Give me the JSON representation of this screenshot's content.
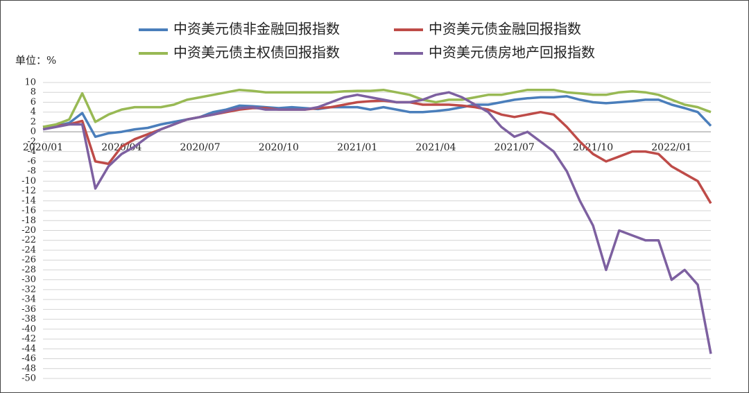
{
  "chart_data": {
    "type": "line",
    "unit_label": "单位：%",
    "x": [
      "2020/01",
      null,
      null,
      null,
      null,
      null,
      "2020/04",
      null,
      null,
      null,
      null,
      null,
      "2020/07",
      null,
      null,
      null,
      null,
      null,
      "2020/10",
      null,
      null,
      null,
      null,
      null,
      "2021/01",
      null,
      null,
      null,
      null,
      null,
      "2021/04",
      null,
      null,
      null,
      null,
      null,
      "2021/07",
      null,
      null,
      null,
      null,
      null,
      "2021/10",
      null,
      null,
      null,
      null,
      null,
      "2022/01",
      null,
      null,
      null
    ],
    "series": [
      {
        "name": "中资美元债非金融回报指数",
        "color": "#4a7ebb",
        "values": [
          1,
          1.2,
          1.8,
          3.8,
          -1,
          -0.3,
          0,
          0.5,
          0.8,
          1.5,
          2,
          2.5,
          3,
          4,
          4.5,
          5.3,
          5.2,
          5,
          4.8,
          5,
          4.8,
          4.6,
          5,
          5,
          5,
          4.5,
          5,
          4.5,
          4,
          4,
          4.2,
          4.5,
          5,
          5.5,
          5.5,
          6,
          6.5,
          6.8,
          7,
          7,
          7.2,
          6.5,
          6,
          5.8,
          6,
          6.2,
          6.5,
          6.5,
          5.5,
          4.8,
          4,
          1.2
        ]
      },
      {
        "name": "中资美元债金融回报指数",
        "color": "#be4b48",
        "values": [
          1,
          1.2,
          1.5,
          2.2,
          -6,
          -6.5,
          -3,
          -1.5,
          -0.5,
          0.5,
          1.5,
          2.5,
          3,
          3.5,
          4,
          4.5,
          4.8,
          4.8,
          4.5,
          4.5,
          4.5,
          4.8,
          5,
          5.5,
          6,
          6.2,
          6.3,
          6,
          6,
          5.5,
          5.5,
          5.5,
          5.3,
          5,
          4.5,
          3.5,
          3,
          3.5,
          4,
          3.5,
          1,
          -2,
          -4.5,
          -6,
          -5,
          -4,
          -4,
          -4.5,
          -7,
          -8.5,
          -10,
          -14.5
        ]
      },
      {
        "name": "中资美元债主权债回报指数",
        "color": "#98b954",
        "values": [
          1,
          1.5,
          2.5,
          7.8,
          2,
          3.5,
          4.5,
          5,
          5,
          5,
          5.5,
          6.5,
          7,
          7.5,
          8,
          8.5,
          8.3,
          8,
          8,
          8,
          8,
          8,
          8,
          8.2,
          8.3,
          8.3,
          8.5,
          8,
          7.5,
          6.5,
          6,
          6.5,
          6.5,
          7,
          7.5,
          7.5,
          8,
          8.5,
          8.5,
          8.5,
          8,
          7.8,
          7.5,
          7.5,
          8,
          8.2,
          8,
          7.5,
          6.5,
          5.5,
          5,
          4
        ]
      },
      {
        "name": "中资美元债房地产回报指数",
        "color": "#7d60a0",
        "values": [
          0.5,
          1,
          1.5,
          1.5,
          -11.5,
          -7,
          -4.5,
          -3,
          -1,
          0.5,
          1.5,
          2.5,
          3,
          3.5,
          4.2,
          4.8,
          5,
          4.5,
          4.5,
          4.5,
          4.5,
          5,
          6,
          7,
          7.5,
          7,
          6.5,
          6,
          6,
          6.5,
          7.5,
          8,
          7,
          5.5,
          4,
          1,
          -1,
          0,
          -2,
          -4,
          -8,
          -14,
          -19,
          -28,
          -20,
          -21,
          -22,
          -22,
          -30,
          -28,
          -31,
          -45
        ]
      }
    ],
    "ylim": [
      -50,
      10
    ],
    "yticks": [
      -50,
      -48,
      -46,
      -44,
      -42,
      -40,
      -38,
      -36,
      -34,
      -32,
      -30,
      -28,
      -26,
      -24,
      -22,
      -20,
      -18,
      -16,
      -14,
      -12,
      -10,
      -8,
      -6,
      -4,
      -2,
      0,
      2,
      4,
      6,
      8,
      10
    ],
    "grid": true
  }
}
